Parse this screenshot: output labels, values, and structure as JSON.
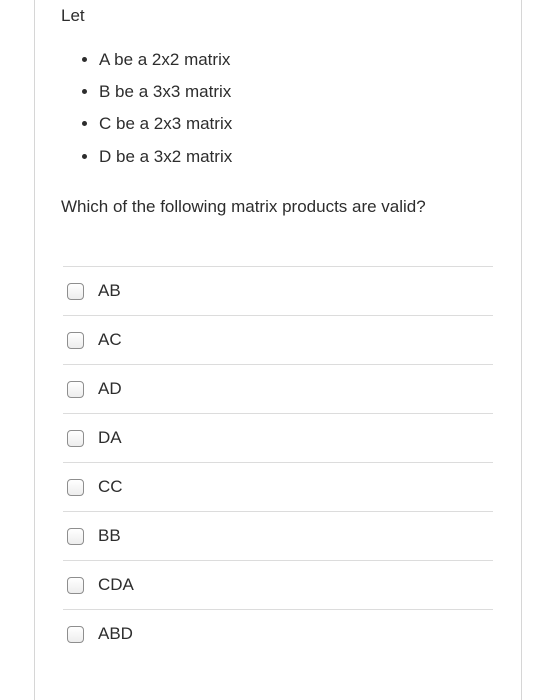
{
  "colors": {
    "text": "#2d2d2d",
    "border": "#d6d6d6",
    "divider": "#dcdcdc",
    "checkbox_border": "#8e8e8e",
    "background": "#ffffff"
  },
  "typography": {
    "body_fontsize": 17,
    "font_family": "Helvetica Neue"
  },
  "intro": "Let",
  "bullets": [
    "A be a 2x2 matrix",
    "B be a 3x3 matrix",
    "C be a 2x3 matrix",
    "D be a 3x2 matrix"
  ],
  "question": "Which of the following matrix products are valid?",
  "options": [
    {
      "label": "AB",
      "checked": false
    },
    {
      "label": "AC",
      "checked": false
    },
    {
      "label": "AD",
      "checked": false
    },
    {
      "label": "DA",
      "checked": false
    },
    {
      "label": "CC",
      "checked": false
    },
    {
      "label": "BB",
      "checked": false
    },
    {
      "label": "CDA",
      "checked": false
    },
    {
      "label": "ABD",
      "checked": false
    }
  ]
}
